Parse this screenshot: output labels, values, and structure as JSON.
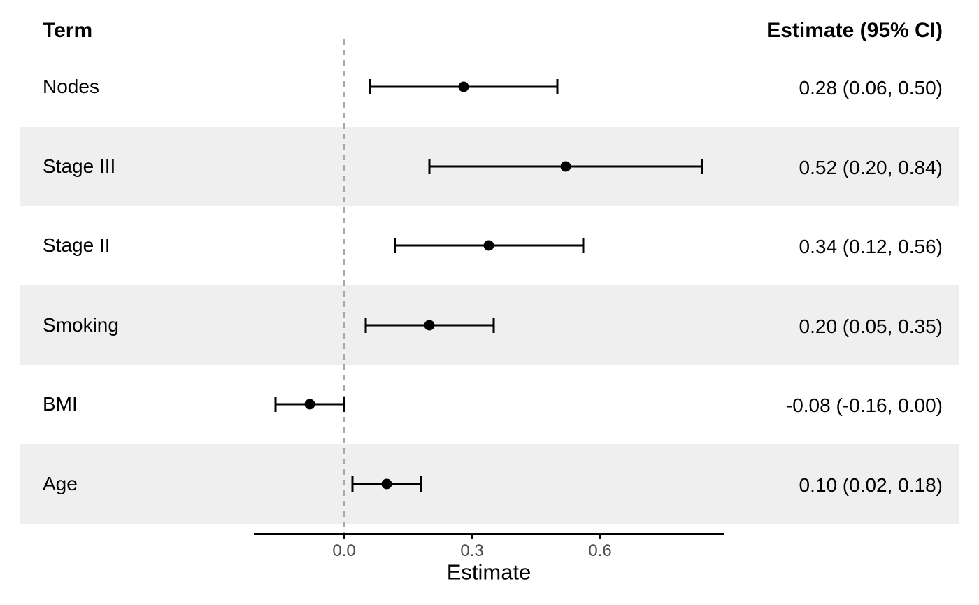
{
  "title_row": {
    "term_header": "Term",
    "estimate_header": "Estimate (95% CI)"
  },
  "chart_data": {
    "type": "scatter",
    "subtype": "forest-plot",
    "title": "",
    "xlabel": "Estimate",
    "ylabel": "",
    "xlim": [
      -0.212,
      0.89
    ],
    "x_ticks": [
      0.0,
      0.3,
      0.6
    ],
    "x_tick_labels": [
      "0.0",
      "0.3",
      "0.6"
    ],
    "reference_line_x": 0,
    "grid": false,
    "legend_position": "none",
    "rows": [
      {
        "term": "Nodes",
        "estimate": 0.28,
        "ci_low": 0.06,
        "ci_high": 0.5,
        "label": "0.28 (0.06, 0.50)",
        "shaded": false
      },
      {
        "term": "Stage III",
        "estimate": 0.52,
        "ci_low": 0.2,
        "ci_high": 0.84,
        "label": "0.52 (0.20, 0.84)",
        "shaded": true
      },
      {
        "term": "Stage II",
        "estimate": 0.34,
        "ci_low": 0.12,
        "ci_high": 0.56,
        "label": "0.34 (0.12, 0.56)",
        "shaded": false
      },
      {
        "term": "Smoking",
        "estimate": 0.2,
        "ci_low": 0.05,
        "ci_high": 0.35,
        "label": "0.20 (0.05, 0.35)",
        "shaded": true
      },
      {
        "term": "BMI",
        "estimate": -0.08,
        "ci_low": -0.16,
        "ci_high": 0.0,
        "label": "-0.08 (-0.16, 0.00)",
        "shaded": false
      },
      {
        "term": "Age",
        "estimate": 0.1,
        "ci_low": 0.02,
        "ci_high": 0.18,
        "label": "0.10 (0.02, 0.18)",
        "shaded": true
      }
    ]
  },
  "colors": {
    "background": "#FFFFFF",
    "stripe": "#EFEFEF",
    "point": "#000000",
    "errorbar": "#000000",
    "axis_line": "#000000",
    "tick_label": "#4D4D4D",
    "axis_title": "#000000",
    "reference_line": "#A8A8A8",
    "text": "#000000"
  }
}
